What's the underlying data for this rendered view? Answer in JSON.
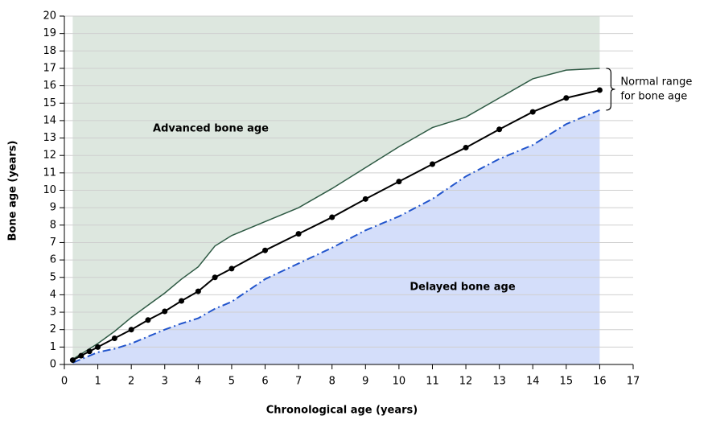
{
  "chart_data": {
    "type": "line",
    "xlabel": "Chronological age (years)",
    "ylabel": "Bone age (years)",
    "xlim": [
      0,
      17
    ],
    "ylim": [
      0,
      20
    ],
    "xticks": [
      0,
      1,
      2,
      3,
      4,
      5,
      6,
      7,
      8,
      9,
      10,
      11,
      12,
      13,
      14,
      15,
      16,
      17
    ],
    "yticks": [
      0,
      1,
      2,
      3,
      4,
      5,
      6,
      7,
      8,
      9,
      10,
      11,
      12,
      13,
      14,
      15,
      16,
      17,
      18,
      19,
      20
    ],
    "grid": true,
    "annotations": [
      "Advanced bone age",
      "Delayed bone age"
    ],
    "range_label": [
      "Normal range",
      "for bone age"
    ],
    "series": [
      {
        "color": "#2e5a44",
        "region_color": "#dde7df",
        "x": [
          0.25,
          0.5,
          1,
          1.5,
          2,
          2.5,
          3,
          3.5,
          4,
          4.5,
          5,
          6,
          7,
          8,
          9,
          10,
          11,
          12,
          13,
          14,
          15,
          16
        ],
        "values": [
          0.3,
          0.6,
          1.2,
          1.9,
          2.7,
          3.4,
          4.1,
          4.9,
          5.6,
          6.8,
          7.4,
          8.2,
          9.0,
          10.1,
          11.3,
          12.5,
          13.6,
          14.2,
          15.3,
          16.4,
          16.9,
          17.0
        ]
      },
      {
        "color": "#000000",
        "x": [
          0.25,
          0.5,
          0.75,
          1,
          1.5,
          2,
          2.5,
          3,
          3.5,
          4,
          4.5,
          5,
          6,
          7,
          8,
          9,
          10,
          11,
          12,
          13,
          14,
          15,
          16
        ],
        "values": [
          0.25,
          0.5,
          0.75,
          1,
          1.5,
          2,
          2.55,
          3.05,
          3.65,
          4.2,
          5.0,
          5.5,
          6.55,
          7.5,
          8.45,
          9.5,
          10.5,
          11.5,
          12.45,
          13.5,
          14.5,
          15.3,
          15.75
        ]
      },
      {
        "color": "#2255cc",
        "region_color": "#d4defa",
        "x": [
          0.25,
          0.5,
          1,
          1.5,
          2,
          2.5,
          3,
          3.5,
          4,
          4.5,
          5,
          6,
          7,
          8,
          9,
          10,
          11,
          12,
          13,
          14,
          15,
          16
        ],
        "values": [
          0.1,
          0.3,
          0.7,
          0.9,
          1.2,
          1.6,
          2.0,
          2.35,
          2.65,
          3.2,
          3.6,
          4.9,
          5.8,
          6.7,
          7.7,
          8.5,
          9.5,
          10.8,
          11.8,
          12.6,
          13.8,
          14.6
        ]
      }
    ]
  }
}
